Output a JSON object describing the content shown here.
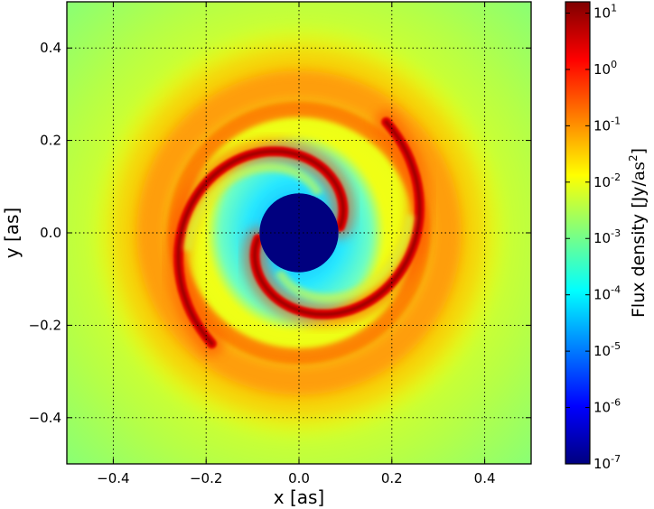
{
  "chart_data": {
    "type": "heatmap",
    "xlabel": "x [as]",
    "ylabel": "y [as]",
    "xlim": [
      -0.5,
      0.5
    ],
    "ylim": [
      -0.5,
      0.5
    ],
    "x_ticks": [
      -0.4,
      -0.2,
      0.0,
      0.2,
      0.4
    ],
    "y_ticks": [
      -0.4,
      -0.2,
      0.0,
      0.2,
      0.4
    ],
    "x_tick_labels": [
      "−0.4",
      "−0.2",
      "0.0",
      "0.2",
      "0.4"
    ],
    "y_tick_labels": [
      "−0.4",
      "−0.2",
      "0.0",
      "0.2",
      "0.4"
    ],
    "grid": true,
    "colormap": "jet",
    "colorbar": {
      "label_prefix": "Flux density [Jy/",
      "label_unit": "as",
      "label_exp": "2",
      "label_suffix": "]",
      "scale": "log",
      "range": [
        1e-07,
        10
      ],
      "ticks": [
        {
          "base": "10",
          "exp": "1",
          "log": 1
        },
        {
          "base": "10",
          "exp": "0",
          "log": 0
        },
        {
          "base": "10",
          "exp": "-1",
          "log": -1
        },
        {
          "base": "10",
          "exp": "-2",
          "log": -2
        },
        {
          "base": "10",
          "exp": "-3",
          "log": -3
        },
        {
          "base": "10",
          "exp": "-4",
          "log": -4
        },
        {
          "base": "10",
          "exp": "-5",
          "log": -5
        },
        {
          "base": "10",
          "exp": "-6",
          "log": -6
        },
        {
          "base": "10",
          "exp": "-7",
          "log": -7
        }
      ],
      "log_max": 1.2
    },
    "features": {
      "background_log_flux": -2.9,
      "central_hole_radius": 0.085,
      "central_hole_log_flux": -7,
      "outer_ring_radius": 0.31,
      "outer_ring_log_flux": -1.2,
      "spiral_arms": 2,
      "spiral_arm_log_flux": 0,
      "cavity_log_flux": -3.8
    }
  },
  "colors": {
    "jet_stops": [
      "#00007f",
      "#0000ff",
      "#007fff",
      "#00ffff",
      "#7fff7f",
      "#ffff00",
      "#ff7f00",
      "#ff0000",
      "#7f0000"
    ]
  }
}
